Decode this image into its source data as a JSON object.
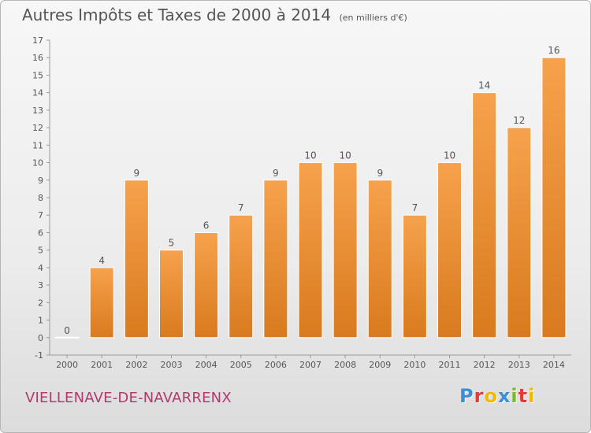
{
  "chart_data": {
    "type": "bar",
    "title": "Autres Impôts et Taxes de 2000 à 2014",
    "unit_label": "(en milliers d'€)",
    "categories": [
      "2000",
      "2001",
      "2002",
      "2003",
      "2004",
      "2005",
      "2006",
      "2007",
      "2008",
      "2009",
      "2010",
      "2011",
      "2012",
      "2013",
      "2014"
    ],
    "values": [
      0,
      4,
      9,
      5,
      6,
      7,
      9,
      10,
      10,
      9,
      7,
      10,
      14,
      12,
      16
    ],
    "ylim": [
      -1,
      17
    ],
    "yticks": [
      -1,
      0,
      1,
      2,
      3,
      4,
      5,
      6,
      7,
      8,
      9,
      10,
      11,
      12,
      13,
      14,
      15,
      16,
      17
    ],
    "xlabel": "",
    "ylabel": "",
    "grid": false,
    "bar_color": "#f29a3e"
  },
  "footer": {
    "place": "VIELLENAVE-DE-NAVARRENX",
    "brand": "Proxiti",
    "brand_colors": [
      "#3c8ed6",
      "#e7383a",
      "#f5b800",
      "#3c8ed6",
      "#7ab929",
      "#e7383a",
      "#f5b800"
    ]
  }
}
